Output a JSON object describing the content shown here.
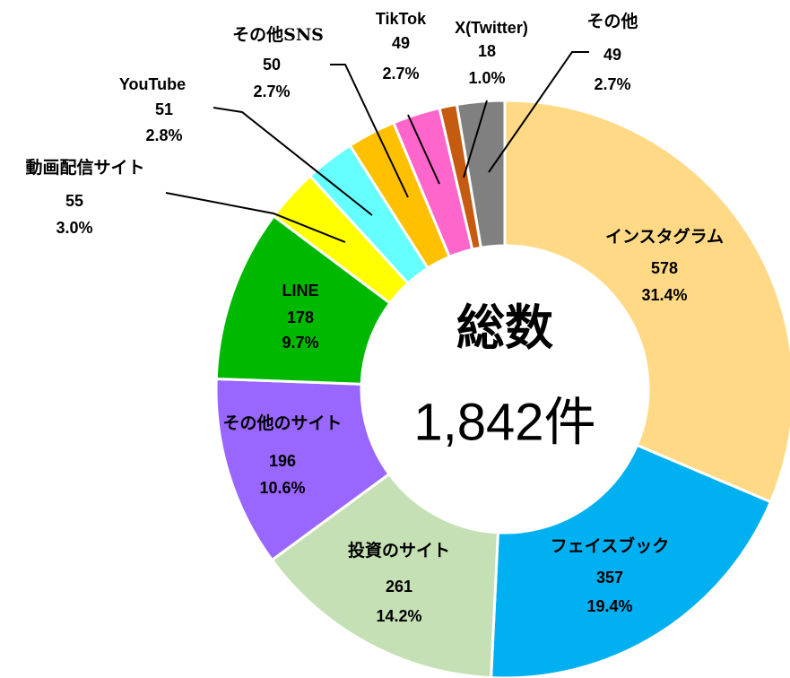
{
  "chart_data": {
    "type": "donut",
    "categories": [
      "インスタグラム",
      "フェイスブック",
      "投資のサイト",
      "その他のサイト",
      "LINE",
      "動画配信サイト",
      "YouTube",
      "その他SNS",
      "TikTok",
      "X(Twitter)",
      "その他"
    ],
    "values": [
      578,
      357,
      261,
      196,
      178,
      55,
      51,
      50,
      49,
      18,
      49
    ],
    "percentages": [
      31.4,
      19.4,
      14.2,
      10.6,
      9.7,
      3.0,
      2.8,
      2.7,
      2.7,
      1.0,
      2.7
    ],
    "percentage_labels": [
      "31.4%",
      "19.4%",
      "14.2%",
      "10.6%",
      "9.7%",
      "3.0%",
      "2.8%",
      "2.7%",
      "2.7%",
      "1.0%",
      "2.7%"
    ],
    "colors": [
      "#FFD985",
      "#00B0F0",
      "#C5E0B4",
      "#9966FF",
      "#00B800",
      "#FFFF00",
      "#66FFFF",
      "#FFC000",
      "#FF66CC",
      "#C55A11",
      "#808080"
    ],
    "center_label": "総数",
    "center_value_label": "1,842件"
  }
}
